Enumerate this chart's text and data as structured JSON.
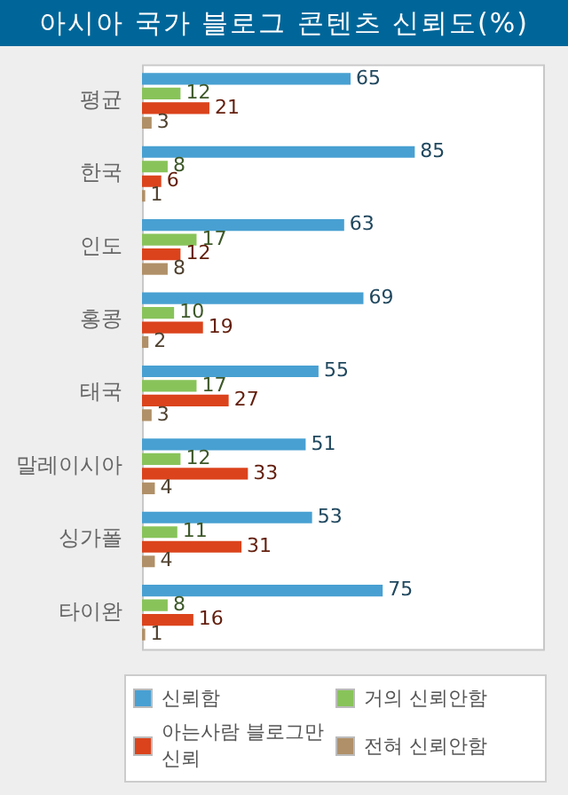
{
  "chart_data": {
    "type": "bar",
    "orientation": "horizontal",
    "title": "아시아 국가 블로그 콘텐츠 신뢰도(%)",
    "categories": [
      "평균",
      "한국",
      "인도",
      "홍콩",
      "태국",
      "말레이시아",
      "싱가폴",
      "타이완"
    ],
    "series": [
      {
        "name": "신뢰함",
        "color": "#48a0d2",
        "values": [
          65,
          85,
          63,
          69,
          55,
          51,
          53,
          75
        ]
      },
      {
        "name": "거의 신뢰안함",
        "color": "#88c35a",
        "values": [
          12,
          8,
          17,
          10,
          17,
          12,
          11,
          8
        ]
      },
      {
        "name": "아는사람 블로그만 신뢰",
        "color": "#db431c",
        "values": [
          21,
          6,
          12,
          19,
          27,
          33,
          31,
          16
        ]
      },
      {
        "name": "전혀 신뢰안함",
        "color": "#b09068",
        "values": [
          3,
          1,
          8,
          2,
          3,
          4,
          4,
          1
        ]
      }
    ],
    "xlim": [
      0,
      125
    ],
    "tick_labels": "y",
    "legend": "bottom",
    "data_labels": true
  }
}
